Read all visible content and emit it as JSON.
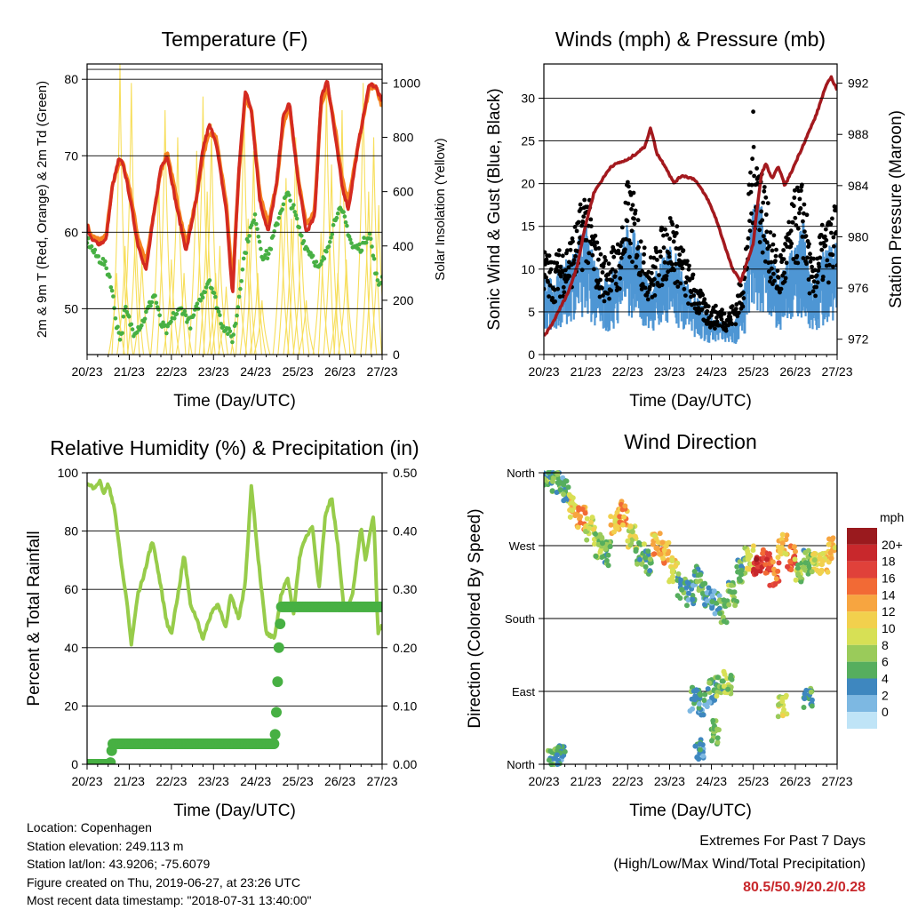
{
  "info": {
    "location": "Location: Copenhagen",
    "elevation": "Station elevation: 249.113 m",
    "latlon": "Station lat/lon: 43.9206; -75.6079",
    "created": "Figure created on Thu, 2019-06-27, at 23:26 UTC",
    "latest": "Most recent data timestamp: \"2018-07-31 13:40:00\""
  },
  "extremes": {
    "title": "Extremes For Past 7 Days",
    "subtitle": "(High/Low/Max Wind/Total Precipitation)",
    "values": "80.5/50.9/20.2/0.28"
  },
  "colors": {
    "temp_2m": "#d42a20",
    "temp_9m": "#f5821f",
    "dewpoint": "#47b043",
    "solar": "#f7de5a",
    "wind": "#4e96d4",
    "gust": "#000000",
    "pressure": "#a3191e",
    "rh": "#97cc4a",
    "precip": "#47b043"
  },
  "chart_data": [
    {
      "type": "line",
      "title": "Temperature (F)",
      "xlabel": "Time (Day/UTC)",
      "ylabel": "2m & 9m T (Red, Orange) & 2m Td (Green)",
      "y2label": "Solar Insolation (Yellow)",
      "x_ticks": [
        "20/23",
        "21/23",
        "22/23",
        "23/23",
        "24/23",
        "25/23",
        "26/23",
        "27/23"
      ],
      "y_ticks": [
        50,
        60,
        70,
        80
      ],
      "y2_ticks": [
        0,
        200,
        400,
        600,
        800,
        1000
      ],
      "ylim": [
        44,
        82
      ],
      "y2lim": [
        0,
        1070
      ],
      "xlim": [
        0,
        7
      ],
      "series": [
        {
          "name": "2m T",
          "x": [
            0,
            0.1,
            0.3,
            0.45,
            0.6,
            0.75,
            0.85,
            1.0,
            1.2,
            1.4,
            1.6,
            1.75,
            1.9,
            2.1,
            2.35,
            2.6,
            2.75,
            2.9,
            3.05,
            3.3,
            3.45,
            3.6,
            3.75,
            3.9,
            4.1,
            4.3,
            4.5,
            4.65,
            4.8,
            5.0,
            5.2,
            5.4,
            5.55,
            5.7,
            5.9,
            6.05,
            6.2,
            6.45,
            6.7,
            6.85,
            7.0
          ],
          "values": [
            61,
            59,
            58.5,
            59,
            66,
            69.5,
            69,
            65,
            58.5,
            55,
            63,
            68.5,
            70,
            64,
            57.5,
            64.5,
            71,
            74,
            72,
            63,
            51.5,
            68,
            78.5,
            76,
            64,
            60,
            66.5,
            75,
            77,
            67,
            60,
            62,
            77.5,
            80,
            72,
            66,
            63,
            72,
            79.5,
            79,
            77
          ]
        },
        {
          "name": "9m T",
          "x": [
            0,
            0.1,
            0.3,
            0.45,
            0.6,
            0.75,
            0.85,
            1.0,
            1.2,
            1.4,
            1.6,
            1.75,
            1.9,
            2.1,
            2.35,
            2.6,
            2.75,
            2.9,
            3.05,
            3.3,
            3.45,
            3.6,
            3.75,
            3.9,
            4.1,
            4.3,
            4.5,
            4.65,
            4.8,
            5.0,
            5.2,
            5.4,
            5.55,
            5.7,
            5.9,
            6.05,
            6.2,
            6.45,
            6.7,
            6.85,
            7.0
          ],
          "values": [
            61,
            59.5,
            59,
            59.5,
            66,
            69,
            69,
            66,
            59.5,
            56,
            63,
            68,
            70.5,
            65,
            58.5,
            64.5,
            70,
            73,
            72.5,
            64,
            53,
            67.5,
            77.5,
            76,
            65,
            61,
            66.5,
            74,
            76.5,
            67.5,
            61,
            63,
            76.5,
            79,
            73,
            67,
            64,
            72,
            79,
            79,
            76.5
          ]
        },
        {
          "name": "2m Td",
          "x": [
            0,
            0.2,
            0.4,
            0.55,
            0.7,
            0.8,
            0.9,
            1.1,
            1.3,
            1.45,
            1.6,
            1.75,
            1.9,
            2.05,
            2.25,
            2.45,
            2.6,
            2.75,
            2.9,
            3.05,
            3.2,
            3.35,
            3.45,
            3.55,
            3.7,
            3.85,
            4.0,
            4.15,
            4.3,
            4.45,
            4.6,
            4.75,
            4.9,
            5.05,
            5.2,
            5.35,
            5.5,
            5.65,
            5.8,
            5.95,
            6.1,
            6.3,
            6.5,
            6.7,
            6.9,
            7.0
          ],
          "values": [
            59,
            57,
            56,
            54,
            48,
            46,
            50,
            47,
            48,
            50,
            52,
            48,
            47,
            49,
            50,
            48,
            50,
            52,
            54,
            51,
            48,
            47,
            46,
            49,
            56,
            60,
            62,
            57,
            57,
            60,
            63,
            65,
            63,
            60,
            58,
            57,
            55,
            57,
            60,
            63,
            62,
            58,
            58,
            60,
            53,
            54
          ]
        },
        {
          "name": "Solar",
          "axis": "y2",
          "peaks_x": [
            0.7,
            0.78,
            0.9,
            1.05,
            1.15,
            1.3,
            1.7,
            1.85,
            2.0,
            2.15,
            2.3,
            2.6,
            2.75,
            2.85,
            2.95,
            3.05,
            3.15,
            3.3,
            3.6,
            3.72,
            3.82,
            3.95,
            4.05,
            4.15,
            4.6,
            4.72,
            4.85,
            4.95,
            5.08,
            5.2,
            5.55,
            5.68,
            5.8,
            5.95,
            6.05,
            6.15,
            6.55,
            6.68,
            6.8,
            6.92
          ],
          "peaks": [
            300,
            1070,
            400,
            1000,
            500,
            350,
            650,
            900,
            350,
            800,
            300,
            750,
            950,
            600,
            850,
            300,
            400,
            250,
            350,
            950,
            500,
            750,
            300,
            200,
            550,
            650,
            500,
            800,
            450,
            200,
            450,
            1000,
            700,
            300,
            900,
            350,
            1000,
            600,
            800,
            550
          ]
        }
      ]
    },
    {
      "type": "scatter",
      "title": "Winds (mph) & Pressure (mb)",
      "xlabel": "Time (Day/UTC)",
      "ylabel": "Sonic Wind & Gust (Blue, Black)",
      "y2label": "Station Pressure (Maroon)",
      "x_ticks": [
        "20/23",
        "21/23",
        "22/23",
        "23/23",
        "24/23",
        "25/23",
        "26/23",
        "27/23"
      ],
      "y_ticks": [
        0,
        5,
        10,
        15,
        20,
        25,
        30
      ],
      "y2_ticks": [
        972,
        976,
        980,
        984,
        988,
        992
      ],
      "ylim": [
        0,
        34
      ],
      "y2lim": [
        970.8,
        993.5
      ],
      "xlim": [
        0,
        7
      ],
      "series": [
        {
          "name": "Pressure",
          "axis": "y2",
          "x": [
            0,
            0.2,
            0.4,
            0.6,
            0.8,
            1.0,
            1.2,
            1.4,
            1.6,
            1.8,
            2.0,
            2.2,
            2.4,
            2.55,
            2.7,
            2.9,
            3.1,
            3.3,
            3.6,
            3.9,
            4.1,
            4.3,
            4.5,
            4.7,
            4.85,
            5.0,
            5.1,
            5.2,
            5.3,
            5.45,
            5.6,
            5.75,
            5.9,
            6.1,
            6.3,
            6.5,
            6.7,
            6.85,
            7.0
          ],
          "values": [
            972.2,
            973.2,
            974.5,
            975.8,
            977.8,
            981,
            983.5,
            984.5,
            985.5,
            985.8,
            986,
            986.5,
            987,
            988.5,
            986.5,
            985.5,
            984.2,
            984.8,
            984.5,
            983,
            981.5,
            979.5,
            977.5,
            976.5,
            978,
            979.5,
            982.5,
            985,
            985.7,
            984.5,
            985.5,
            984,
            985,
            986.5,
            988,
            989.5,
            991.5,
            992.5,
            991.5
          ]
        },
        {
          "name": "Sonic Wind",
          "x": [
            0,
            0.2,
            0.4,
            0.6,
            0.8,
            1.0,
            1.2,
            1.4,
            1.6,
            1.8,
            2.0,
            2.2,
            2.4,
            2.6,
            2.8,
            3.0,
            3.2,
            3.4,
            3.6,
            3.8,
            4.0,
            4.2,
            4.4,
            4.6,
            4.8,
            5.0,
            5.2,
            5.4,
            5.6,
            5.8,
            6.0,
            6.2,
            6.4,
            6.6,
            6.8,
            7.0
          ],
          "values": [
            7,
            6,
            7.5,
            8,
            9,
            11,
            8,
            6,
            7,
            8,
            11,
            10,
            7,
            6,
            8,
            9,
            8,
            6,
            5,
            4,
            3,
            3,
            2.5,
            3,
            6,
            13,
            12,
            9,
            6,
            8,
            9,
            11,
            6,
            8,
            9,
            10
          ]
        },
        {
          "name": "Gust",
          "x": [
            0,
            0.2,
            0.4,
            0.6,
            0.8,
            1.0,
            1.2,
            1.4,
            1.6,
            1.8,
            2.0,
            2.2,
            2.4,
            2.6,
            2.8,
            3.0,
            3.2,
            3.4,
            3.6,
            3.8,
            4.0,
            4.2,
            4.4,
            4.6,
            4.8,
            5.0,
            5.2,
            5.4,
            5.6,
            5.8,
            6.0,
            6.2,
            6.4,
            6.6,
            6.8,
            7.0
          ],
          "values": [
            11,
            10,
            11,
            12,
            14,
            18,
            13,
            10,
            11,
            12,
            18,
            16,
            11,
            10,
            13,
            15,
            13,
            10,
            8,
            6,
            5,
            5,
            4.5,
            6,
            10,
            25,
            20,
            14,
            10,
            13,
            17,
            18,
            9,
            13,
            14,
            16
          ]
        }
      ]
    },
    {
      "type": "line",
      "title": "Relative Humidity (%) & Precipitation (in)",
      "xlabel": "Time (Day/UTC)",
      "ylabel": "Percent & Total Rainfall",
      "x_ticks": [
        "20/23",
        "21/23",
        "22/23",
        "23/23",
        "24/23",
        "25/23",
        "26/23",
        "27/23"
      ],
      "y_ticks": [
        0,
        20,
        40,
        60,
        80,
        100
      ],
      "y2_ticks": [
        "0.00",
        "0.10",
        "0.20",
        "0.30",
        "0.40",
        "0.50"
      ],
      "ylim": [
        0,
        100
      ],
      "y2lim": [
        0,
        0.5
      ],
      "xlim": [
        0,
        7
      ],
      "series": [
        {
          "name": "RH",
          "x": [
            0,
            0.15,
            0.3,
            0.4,
            0.5,
            0.65,
            0.8,
            0.95,
            1.05,
            1.2,
            1.35,
            1.55,
            1.7,
            1.9,
            2.0,
            2.2,
            2.3,
            2.45,
            2.6,
            2.75,
            2.95,
            3.1,
            3.3,
            3.4,
            3.6,
            3.75,
            3.9,
            4.05,
            4.25,
            4.45,
            4.6,
            4.75,
            4.9,
            5.05,
            5.2,
            5.35,
            5.5,
            5.65,
            5.8,
            5.95,
            6.1,
            6.3,
            6.5,
            6.6,
            6.8,
            6.9,
            7.0
          ],
          "values": [
            96,
            95,
            97,
            93,
            96,
            88,
            70,
            55,
            41,
            58,
            65,
            77,
            65,
            48,
            45,
            62,
            72,
            55,
            50,
            43,
            52,
            55,
            47,
            58,
            50,
            62,
            96,
            72,
            45,
            43,
            58,
            64,
            52,
            72,
            78,
            82,
            60,
            85,
            92,
            75,
            52,
            58,
            82,
            70,
            86,
            45,
            48
          ]
        },
        {
          "name": "Precip",
          "axis": "y2",
          "x": [
            0,
            0.55,
            0.6,
            4.45,
            4.5,
            4.55,
            4.6,
            7.0
          ],
          "values": [
            0,
            0,
            0.035,
            0.035,
            0.1,
            0.2,
            0.27,
            0.27
          ]
        }
      ]
    },
    {
      "type": "scatter",
      "title": "Wind Direction",
      "xlabel": "Time (Day/UTC)",
      "ylabel": "Direction (Colored By Speed)",
      "x_ticks": [
        "20/23",
        "21/23",
        "22/23",
        "23/23",
        "24/23",
        "25/23",
        "26/23",
        "27/23"
      ],
      "y_ticks": [
        "North",
        "West",
        "South",
        "East",
        "North"
      ],
      "y_tick_values": [
        360,
        270,
        180,
        90,
        0
      ],
      "ylim": [
        0,
        360
      ],
      "xlim": [
        0,
        7
      ],
      "colorbar_title": "mph",
      "colorbar_labels": [
        "20+",
        "18",
        "16",
        "14",
        "12",
        "10",
        "8",
        "6",
        "4",
        "2",
        "0"
      ],
      "colorbar_colors": [
        "#9a1a1e",
        "#c8282c",
        "#e0413a",
        "#f26a35",
        "#f7a540",
        "#f2d04d",
        "#d7e055",
        "#9acb5a",
        "#56ae5e",
        "#3e87bf",
        "#7db8e2",
        "#bfe4f7"
      ],
      "series": [
        {
          "name": "Direction",
          "x": [
            0.1,
            0.3,
            0.5,
            0.7,
            0.9,
            1.1,
            1.3,
            1.5,
            1.7,
            1.9,
            2.1,
            2.3,
            2.5,
            2.7,
            2.9,
            3.1,
            3.3,
            3.5,
            3.7,
            3.9,
            4.1,
            4.3,
            4.5,
            4.7,
            4.9,
            5.1,
            5.3,
            5.5,
            5.7,
            5.9,
            6.1,
            6.3,
            6.5,
            6.7,
            6.9,
            3.6,
            3.8,
            4.0,
            4.2,
            4.4,
            5.7,
            6.3,
            0.2,
            0.4,
            3.7,
            4.1
          ],
          "speeds": [
            5,
            4,
            3,
            10,
            12,
            8,
            6,
            4,
            10,
            12,
            8,
            5,
            4,
            11,
            12,
            9,
            3,
            2,
            4,
            3,
            2,
            4,
            5,
            4,
            8,
            17,
            16,
            14,
            10,
            14,
            6,
            5,
            8,
            10,
            11,
            3,
            2,
            3,
            5,
            6,
            7,
            3,
            4,
            3,
            2,
            5
          ],
          "values": [
            355,
            350,
            340,
            320,
            305,
            290,
            270,
            260,
            300,
            310,
            280,
            260,
            250,
            270,
            260,
            240,
            220,
            210,
            230,
            210,
            200,
            190,
            210,
            240,
            255,
            245,
            250,
            235,
            270,
            255,
            240,
            250,
            250,
            250,
            265,
            80,
            75,
            90,
            95,
            100,
            70,
            80,
            5,
            8,
            20,
            40
          ]
        }
      ]
    }
  ]
}
